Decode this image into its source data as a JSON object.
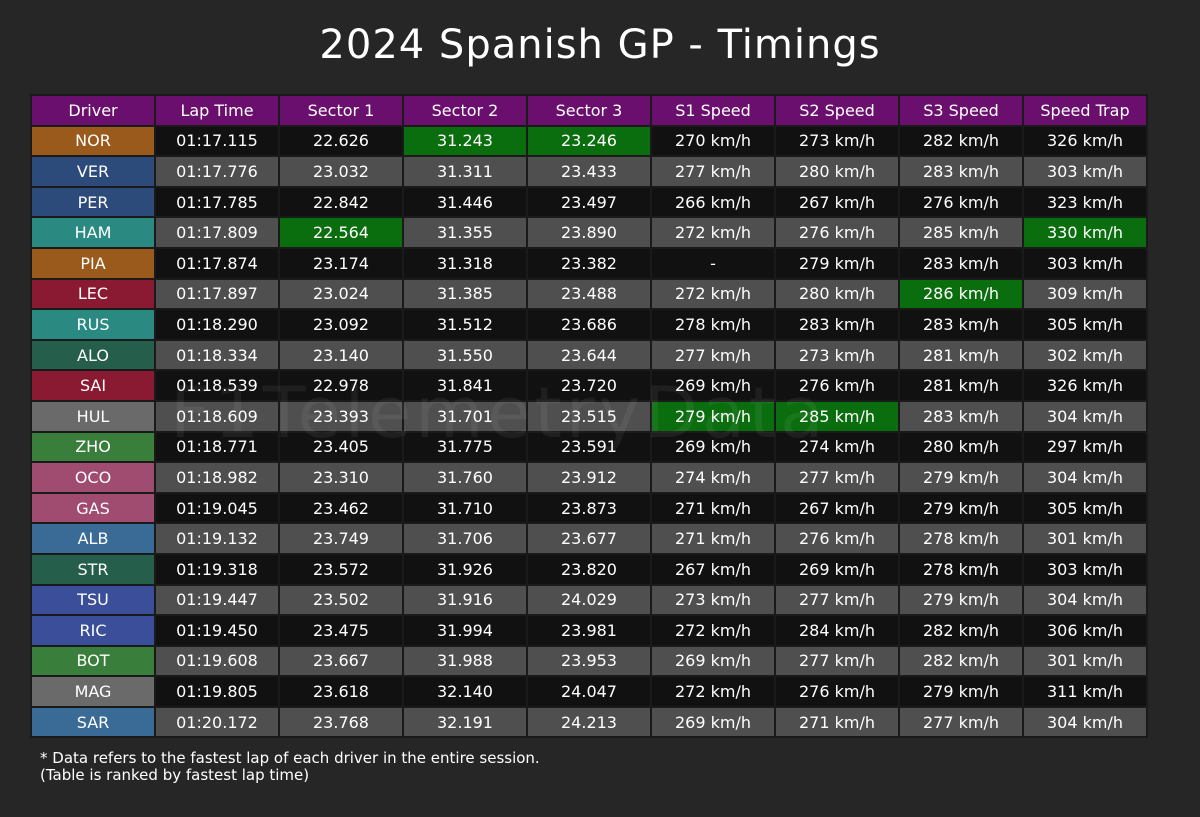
{
  "header": {
    "title": "2024 Spanish GP - Timings"
  },
  "table": {
    "columns": [
      "Driver",
      "Lap Time",
      "Sector 1",
      "Sector 2",
      "Sector 3",
      "S1 Speed",
      "S2 Speed",
      "S3 Speed",
      "Speed Trap"
    ],
    "header_color": "#6b0f6e",
    "best_color": "#0b6e0e",
    "row_colors": [
      "#111111",
      "#4f4f4f"
    ],
    "rows": [
      {
        "color": "#9a5a1c",
        "best": [
          3,
          4
        ],
        "cells": [
          "NOR",
          "01:17.115",
          "22.626",
          "31.243",
          "23.246",
          "270 km/h",
          "273 km/h",
          "282 km/h",
          "326 km/h"
        ]
      },
      {
        "color": "#2c4a7a",
        "best": [],
        "cells": [
          "VER",
          "01:17.776",
          "23.032",
          "31.311",
          "23.433",
          "277 km/h",
          "280 km/h",
          "283 km/h",
          "303 km/h"
        ]
      },
      {
        "color": "#2c4a7a",
        "best": [],
        "cells": [
          "PER",
          "01:17.785",
          "22.842",
          "31.446",
          "23.497",
          "266 km/h",
          "267 km/h",
          "276 km/h",
          "323 km/h"
        ]
      },
      {
        "color": "#2a8a82",
        "best": [
          2,
          8
        ],
        "cells": [
          "HAM",
          "01:17.809",
          "22.564",
          "31.355",
          "23.890",
          "272 km/h",
          "276 km/h",
          "285 km/h",
          "330 km/h"
        ]
      },
      {
        "color": "#9a5a1c",
        "best": [],
        "cells": [
          "PIA",
          "01:17.874",
          "23.174",
          "31.318",
          "23.382",
          "-",
          "279 km/h",
          "283 km/h",
          "303 km/h"
        ]
      },
      {
        "color": "#8a1a32",
        "best": [
          7
        ],
        "cells": [
          "LEC",
          "01:17.897",
          "23.024",
          "31.385",
          "23.488",
          "272 km/h",
          "280 km/h",
          "286 km/h",
          "309 km/h"
        ]
      },
      {
        "color": "#2a8a82",
        "best": [],
        "cells": [
          "RUS",
          "01:18.290",
          "23.092",
          "31.512",
          "23.686",
          "278 km/h",
          "283 km/h",
          "283 km/h",
          "305 km/h"
        ]
      },
      {
        "color": "#255e4a",
        "best": [],
        "cells": [
          "ALO",
          "01:18.334",
          "23.140",
          "31.550",
          "23.644",
          "277 km/h",
          "273 km/h",
          "281 km/h",
          "302 km/h"
        ]
      },
      {
        "color": "#8a1a32",
        "best": [],
        "cells": [
          "SAI",
          "01:18.539",
          "22.978",
          "31.841",
          "23.720",
          "269 km/h",
          "276 km/h",
          "281 km/h",
          "326 km/h"
        ]
      },
      {
        "color": "#6a6a6a",
        "best": [
          5,
          6
        ],
        "cells": [
          "HUL",
          "01:18.609",
          "23.393",
          "31.701",
          "23.515",
          "279 km/h",
          "285 km/h",
          "283 km/h",
          "304 km/h"
        ]
      },
      {
        "color": "#3a7e3c",
        "best": [],
        "cells": [
          "ZHO",
          "01:18.771",
          "23.405",
          "31.775",
          "23.591",
          "269 km/h",
          "274 km/h",
          "280 km/h",
          "297 km/h"
        ]
      },
      {
        "color": "#a04c70",
        "best": [],
        "cells": [
          "OCO",
          "01:18.982",
          "23.310",
          "31.760",
          "23.912",
          "274 km/h",
          "277 km/h",
          "279 km/h",
          "304 km/h"
        ]
      },
      {
        "color": "#a04c70",
        "best": [],
        "cells": [
          "GAS",
          "01:19.045",
          "23.462",
          "31.710",
          "23.873",
          "271 km/h",
          "267 km/h",
          "279 km/h",
          "305 km/h"
        ]
      },
      {
        "color": "#3a6a96",
        "best": [],
        "cells": [
          "ALB",
          "01:19.132",
          "23.749",
          "31.706",
          "23.677",
          "271 km/h",
          "276 km/h",
          "278 km/h",
          "301 km/h"
        ]
      },
      {
        "color": "#255e4a",
        "best": [],
        "cells": [
          "STR",
          "01:19.318",
          "23.572",
          "31.926",
          "23.820",
          "267 km/h",
          "269 km/h",
          "278 km/h",
          "303 km/h"
        ]
      },
      {
        "color": "#3a4e9a",
        "best": [],
        "cells": [
          "TSU",
          "01:19.447",
          "23.502",
          "31.916",
          "24.029",
          "273 km/h",
          "277 km/h",
          "279 km/h",
          "304 km/h"
        ]
      },
      {
        "color": "#3a4e9a",
        "best": [],
        "cells": [
          "RIC",
          "01:19.450",
          "23.475",
          "31.994",
          "23.981",
          "272 km/h",
          "284 km/h",
          "282 km/h",
          "306 km/h"
        ]
      },
      {
        "color": "#3a7e3c",
        "best": [],
        "cells": [
          "BOT",
          "01:19.608",
          "23.667",
          "31.988",
          "23.953",
          "269 km/h",
          "277 km/h",
          "282 km/h",
          "301 km/h"
        ]
      },
      {
        "color": "#6a6a6a",
        "best": [],
        "cells": [
          "MAG",
          "01:19.805",
          "23.618",
          "32.140",
          "24.047",
          "272 km/h",
          "276 km/h",
          "279 km/h",
          "311 km/h"
        ]
      },
      {
        "color": "#3a6a96",
        "best": [],
        "cells": [
          "SAR",
          "01:20.172",
          "23.768",
          "32.191",
          "24.213",
          "269 km/h",
          "271 km/h",
          "277 km/h",
          "304 km/h"
        ]
      }
    ]
  },
  "footnotes": [
    "* Data refers to the fastest lap of each driver in the entire session.",
    "(Table is ranked by fastest lap time)"
  ],
  "watermark": "F1TelemetryData"
}
